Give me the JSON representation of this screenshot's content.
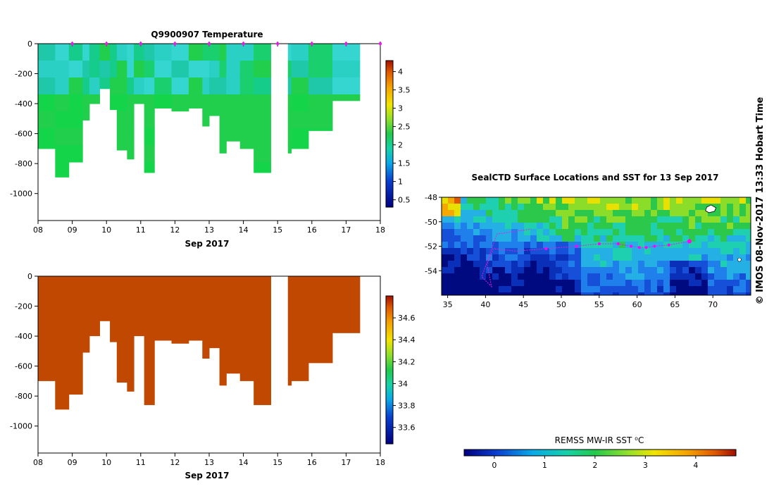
{
  "chart_data": [
    {
      "type": "heatmap",
      "title": "Q9900907  Temperature",
      "xlabel": "Sep 2017",
      "ylabel": "",
      "x_ticks": [
        "08",
        "09",
        "10",
        "11",
        "12",
        "13",
        "14",
        "15",
        "16",
        "17",
        "18"
      ],
      "y_ticks": [
        0,
        -200,
        -400,
        -600,
        -800,
        -1000
      ],
      "xlim": [
        8,
        18
      ],
      "ylim": [
        -1180,
        0
      ],
      "colorbar": {
        "ticks": [
          "0.5",
          "1",
          "1.5",
          "2",
          "2.5",
          "3",
          "3.5",
          "4"
        ],
        "range": [
          0.3,
          4.3
        ]
      },
      "surface_markers": [
        9.0,
        10.0,
        11.0,
        12.0,
        13.0,
        14.0,
        15.0,
        16.0,
        17.0,
        18.0
      ],
      "profiles": [
        {
          "t": 8.0,
          "depth": 700
        },
        {
          "t": 8.5,
          "depth": 890
        },
        {
          "t": 8.9,
          "depth": 790
        },
        {
          "t": 9.3,
          "depth": 510
        },
        {
          "t": 9.5,
          "depth": 400
        },
        {
          "t": 9.8,
          "depth": 300
        },
        {
          "t": 10.1,
          "depth": 440
        },
        {
          "t": 10.3,
          "depth": 710
        },
        {
          "t": 10.6,
          "depth": 770
        },
        {
          "t": 10.8,
          "depth": 400
        },
        {
          "t": 11.1,
          "depth": 860
        },
        {
          "t": 11.4,
          "depth": 430
        },
        {
          "t": 11.9,
          "depth": 450
        },
        {
          "t": 12.4,
          "depth": 430
        },
        {
          "t": 12.8,
          "depth": 550
        },
        {
          "t": 13.0,
          "depth": 480
        },
        {
          "t": 13.3,
          "depth": 730
        },
        {
          "t": 13.5,
          "depth": 650
        },
        {
          "t": 13.9,
          "depth": 700
        },
        {
          "t": 14.3,
          "depth": 860
        },
        {
          "t": 15.3,
          "depth": 730
        },
        {
          "t": 15.4,
          "depth": 700
        },
        {
          "t": 15.9,
          "depth": 580
        },
        {
          "t": 16.6,
          "depth": 380
        }
      ]
    },
    {
      "type": "heatmap",
      "title": "",
      "xlabel": "Sep 2017",
      "ylabel": "",
      "x_ticks": [
        "08",
        "09",
        "10",
        "11",
        "12",
        "13",
        "14",
        "15",
        "16",
        "17",
        "18"
      ],
      "y_ticks": [
        0,
        -200,
        -400,
        -600,
        -800,
        -1000
      ],
      "xlim": [
        8,
        18
      ],
      "ylim": [
        -1180,
        0
      ],
      "colorbar": {
        "ticks": [
          "33.6",
          "33.8",
          "34",
          "34.2",
          "34.4",
          "34.6"
        ],
        "range": [
          33.45,
          34.8
        ]
      }
    },
    {
      "type": "heatmap",
      "title": "SealCTD Surface Locations and SST for 13 Sep 2017",
      "xlabel": "",
      "ylabel": "",
      "x_ticks": [
        "35",
        "40",
        "45",
        "50",
        "55",
        "60",
        "65",
        "70"
      ],
      "y_ticks": [
        "-48",
        "-50",
        "-52",
        "-54"
      ],
      "xlim": [
        34.2,
        75
      ],
      "ylim": [
        -56,
        -48
      ],
      "colorbar_label": "REMSS MW-IR SST ⁰C",
      "colorbar": {
        "ticks": [
          "0",
          "1",
          "2",
          "3",
          "4"
        ],
        "range": [
          -0.6,
          4.8
        ]
      },
      "track_points": [
        [
          66.9,
          -51.6
        ],
        [
          64.2,
          -51.9
        ],
        [
          62.3,
          -52.0
        ],
        [
          61.2,
          -52.1
        ],
        [
          60.3,
          -52.1
        ],
        [
          59.2,
          -52.0
        ],
        [
          57.5,
          -51.8
        ],
        [
          55.0,
          -51.8
        ],
        [
          52.0,
          -52.0
        ],
        [
          48.0,
          -52.2
        ]
      ]
    }
  ],
  "credit": "© IMOS 08-Nov-2017 13:33 Hobart Time"
}
